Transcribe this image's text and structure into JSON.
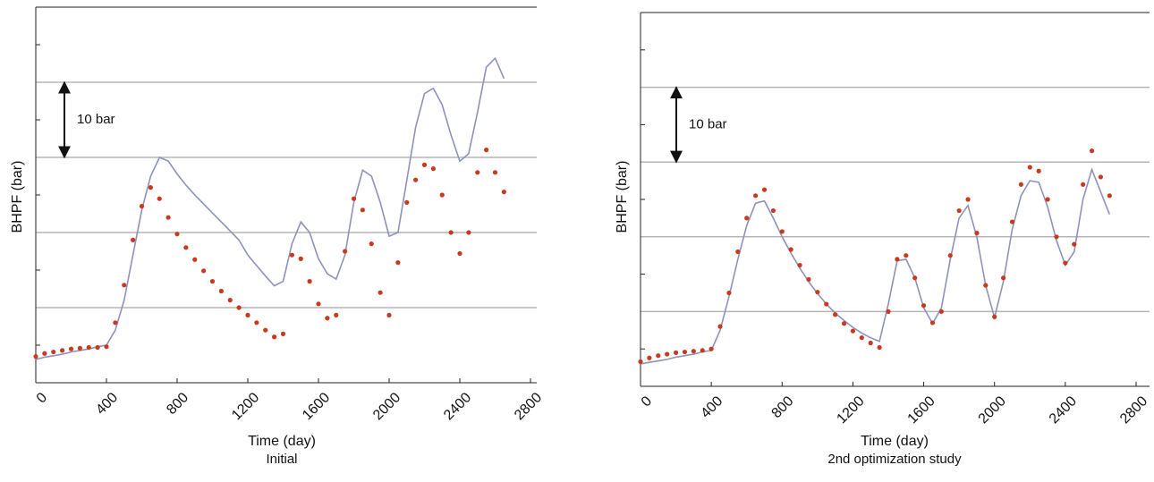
{
  "chart_data": [
    {
      "type": "line",
      "x_label": "Time (day)",
      "y_label": "BHPF (bar)",
      "caption": "Initial",
      "x": [
        0,
        50,
        100,
        150,
        200,
        250,
        300,
        350,
        400,
        450,
        500,
        550,
        600,
        650,
        700,
        750,
        800,
        850,
        900,
        950,
        1000,
        1050,
        1100,
        1150,
        1200,
        1250,
        1300,
        1350,
        1400,
        1450,
        1500,
        1550,
        1600,
        1650,
        1700,
        1750,
        1800,
        1850,
        1900,
        1950,
        2000,
        2050,
        2100,
        2150,
        2200,
        2250,
        2300,
        2350,
        2400,
        2450,
        2500,
        2550,
        2600,
        2650
      ],
      "series": [
        {
          "color": "#8d92bd",
          "style": "line",
          "values": [
            3.1,
            3.4,
            3.6,
            3.8,
            4.1,
            4.3,
            4.5,
            4.8,
            5.0,
            7,
            11,
            17,
            23,
            27.5,
            30,
            29.5,
            27.8,
            26.3,
            25,
            23.8,
            22.6,
            21.4,
            20.2,
            19,
            17,
            15.6,
            14.2,
            12.9,
            13.5,
            18.5,
            21.4,
            20,
            16.5,
            14.5,
            13.8,
            17,
            24,
            28.3,
            27.5,
            24,
            19.5,
            20,
            27,
            34,
            38.5,
            39.2,
            37,
            33,
            29.5,
            30.5,
            36,
            42,
            43.2,
            40.5
          ]
        },
        {
          "color": "#c8391e",
          "style": "markers",
          "values": [
            3.5,
            3.9,
            4.1,
            4.3,
            4.5,
            4.6,
            4.7,
            4.7,
            4.8,
            8,
            13,
            19,
            23.5,
            26,
            24.5,
            22,
            19.8,
            18,
            16.4,
            14.9,
            13.5,
            12.2,
            11,
            10,
            9,
            8,
            7,
            6.1,
            6.5,
            17,
            16.5,
            13.5,
            10.5,
            8.6,
            9,
            17.5,
            24.5,
            23,
            18.5,
            12,
            9,
            16,
            24,
            27,
            29,
            28.5,
            25,
            20,
            17.2,
            20,
            28,
            31,
            28,
            25.4
          ]
        }
      ],
      "xlim": [
        0,
        2800
      ],
      "xticks": [
        0,
        400,
        800,
        1200,
        1600,
        2000,
        2400,
        2800
      ],
      "ylim": [
        0,
        50
      ],
      "yticks": [
        5,
        15,
        25,
        35,
        45
      ],
      "grid_lines": [
        10,
        20,
        30,
        40
      ],
      "annotation": {
        "text": "10 bar",
        "from": 30,
        "to": 40
      }
    },
    {
      "type": "line",
      "x_label": "Time (day)",
      "y_label": "BHPF (bar)",
      "caption": "2nd optimization study",
      "x": [
        0,
        50,
        100,
        150,
        200,
        250,
        300,
        350,
        400,
        450,
        500,
        550,
        600,
        650,
        700,
        750,
        800,
        850,
        900,
        950,
        1000,
        1050,
        1100,
        1150,
        1200,
        1250,
        1300,
        1350,
        1400,
        1450,
        1500,
        1550,
        1600,
        1650,
        1700,
        1750,
        1800,
        1850,
        1900,
        1950,
        2000,
        2050,
        2100,
        2150,
        2200,
        2250,
        2300,
        2350,
        2400,
        2450,
        2500,
        2550,
        2600,
        2650
      ],
      "series": [
        {
          "color": "#8d92bd",
          "style": "line",
          "values": [
            3,
            3.2,
            3.4,
            3.6,
            3.9,
            4.1,
            4.3,
            4.6,
            4.8,
            7.5,
            12,
            17,
            21.5,
            24.5,
            24.8,
            22.5,
            20,
            17.8,
            15.8,
            14,
            12.4,
            11,
            9.8,
            8.8,
            7.9,
            7.1,
            6.5,
            6,
            11,
            16.8,
            17,
            14.5,
            10.5,
            8.4,
            10.5,
            17,
            22.5,
            24.2,
            20,
            13.5,
            9.2,
            14,
            21,
            25.5,
            27.5,
            27.3,
            24,
            19.5,
            16.2,
            18,
            25,
            29,
            26,
            23
          ]
        },
        {
          "color": "#c8391e",
          "style": "markers",
          "values": [
            3.3,
            3.8,
            4.1,
            4.3,
            4.5,
            4.6,
            4.7,
            4.8,
            5,
            8,
            12.5,
            18,
            22.5,
            25.5,
            26.3,
            23.5,
            20.7,
            18.3,
            16.2,
            14.3,
            12.6,
            11,
            9.6,
            8.4,
            7.4,
            6.5,
            5.8,
            5.2,
            10,
            17,
            17.5,
            14.5,
            10.8,
            8.5,
            10,
            17.5,
            23.5,
            25,
            20.5,
            13.5,
            9.3,
            14.5,
            22,
            27,
            29.3,
            28.8,
            25,
            20,
            16.5,
            19,
            27,
            31.5,
            28,
            25.5
          ]
        }
      ],
      "xlim": [
        0,
        2800
      ],
      "xticks": [
        0,
        400,
        800,
        1200,
        1600,
        2000,
        2400,
        2800
      ],
      "ylim": [
        0,
        50
      ],
      "yticks": [
        5,
        15,
        25,
        35,
        45
      ],
      "grid_lines": [
        10,
        20,
        30,
        40
      ],
      "annotation": {
        "text": "10 bar",
        "from": 30,
        "to": 40
      }
    }
  ]
}
